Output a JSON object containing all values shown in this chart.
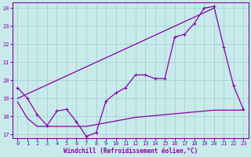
{
  "xlabel": "Windchill (Refroidissement éolien,°C)",
  "background_color": "#c8eaea",
  "grid_color": "#a0cccc",
  "line_color": "#8800aa",
  "xlim": [
    -0.5,
    23.5
  ],
  "ylim": [
    16.8,
    24.3
  ],
  "xticks": [
    0,
    1,
    2,
    3,
    4,
    5,
    6,
    7,
    8,
    9,
    10,
    11,
    12,
    13,
    14,
    15,
    16,
    17,
    18,
    19,
    20,
    21,
    22,
    23
  ],
  "yticks": [
    17,
    18,
    19,
    20,
    21,
    22,
    23,
    24
  ],
  "line1_x": [
    0,
    1,
    2,
    3,
    4,
    5,
    6,
    7,
    8,
    9,
    10,
    11,
    12,
    13,
    14,
    15,
    16,
    17,
    18,
    19,
    20,
    21,
    22,
    23
  ],
  "line1_y": [
    19.6,
    19.0,
    18.1,
    17.5,
    18.3,
    18.4,
    17.7,
    16.9,
    17.1,
    18.85,
    19.3,
    19.6,
    20.3,
    20.3,
    20.1,
    20.1,
    22.4,
    22.55,
    23.15,
    24.0,
    24.1,
    21.85,
    19.7,
    18.4
  ],
  "line2_x": [
    0,
    1,
    2,
    3,
    4,
    5,
    6,
    7,
    8,
    9,
    10,
    11,
    12,
    13,
    14,
    15,
    16,
    17,
    18,
    19,
    20,
    21,
    22,
    23
  ],
  "line2_y": [
    18.8,
    17.9,
    17.45,
    17.45,
    17.45,
    17.45,
    17.45,
    17.45,
    17.55,
    17.65,
    17.75,
    17.85,
    17.95,
    18.0,
    18.05,
    18.1,
    18.15,
    18.2,
    18.25,
    18.3,
    18.35,
    18.35,
    18.35,
    18.35
  ],
  "line3_x": [
    0,
    20
  ],
  "line3_y": [
    19.0,
    24.0
  ]
}
